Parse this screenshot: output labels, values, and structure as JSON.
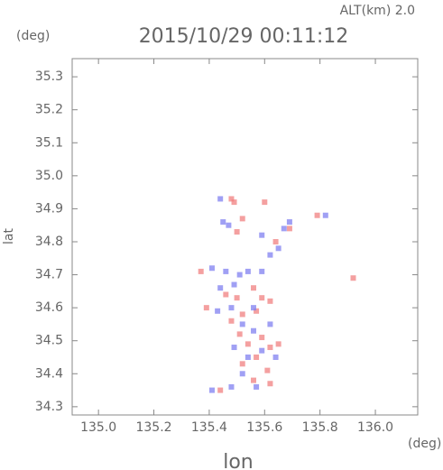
{
  "chart_data": {
    "type": "scatter",
    "title": "2015/10/29 00:11:12",
    "subtitle": "ALT(km) 2.0",
    "y_unit": "(deg)",
    "x_unit": "(deg)",
    "xlabel": "lon",
    "ylabel": "lat",
    "xlim": [
      134.905,
      136.153
    ],
    "ylim": [
      34.275,
      35.355
    ],
    "xticks": [
      {
        "value": 135,
        "label": "135.0"
      },
      135.2,
      135.4,
      135.6,
      135.8,
      {
        "value": 136,
        "label": "136.0"
      }
    ],
    "yticks": [
      34.3,
      34.4,
      34.5,
      34.6,
      34.7,
      34.8,
      34.9,
      {
        "value": 35,
        "label": "35.0"
      },
      35.1,
      35.2,
      35.3
    ],
    "series": [
      {
        "color": "#f08080",
        "x": [
          135.48,
          135.49,
          135.6,
          135.52,
          135.64,
          135.37,
          135.39,
          135.46,
          135.5,
          135.56,
          135.59,
          135.62,
          135.52,
          135.57,
          135.48,
          135.51,
          135.54,
          135.59,
          135.62,
          135.65,
          135.57,
          135.61,
          135.52,
          135.56,
          135.62,
          135.44,
          135.92,
          135.79,
          135.5,
          135.69
        ],
        "values": [
          34.93,
          34.92,
          34.92,
          34.87,
          34.8,
          34.71,
          34.6,
          34.64,
          34.63,
          34.66,
          34.63,
          34.62,
          34.58,
          34.59,
          34.56,
          34.52,
          34.49,
          34.51,
          34.48,
          34.49,
          34.45,
          34.41,
          34.43,
          34.38,
          34.37,
          34.35,
          34.69,
          34.88,
          34.83,
          34.84
        ]
      },
      {
        "color": "#8080f0",
        "x": [
          135.44,
          135.45,
          135.47,
          135.59,
          135.62,
          135.67,
          135.41,
          135.46,
          135.51,
          135.54,
          135.44,
          135.48,
          135.43,
          135.52,
          135.56,
          135.62,
          135.49,
          135.54,
          135.59,
          135.64,
          135.52,
          135.57,
          135.41,
          135.48,
          135.82,
          135.69,
          135.65,
          135.59,
          135.56,
          135.49
        ],
        "values": [
          34.93,
          34.86,
          34.85,
          34.82,
          34.76,
          34.84,
          34.72,
          34.71,
          34.7,
          34.71,
          34.66,
          34.6,
          34.59,
          34.55,
          34.53,
          34.55,
          34.48,
          34.45,
          34.47,
          34.45,
          34.4,
          34.36,
          34.35,
          34.36,
          34.88,
          34.86,
          34.78,
          34.71,
          34.6,
          34.67
        ]
      }
    ]
  }
}
